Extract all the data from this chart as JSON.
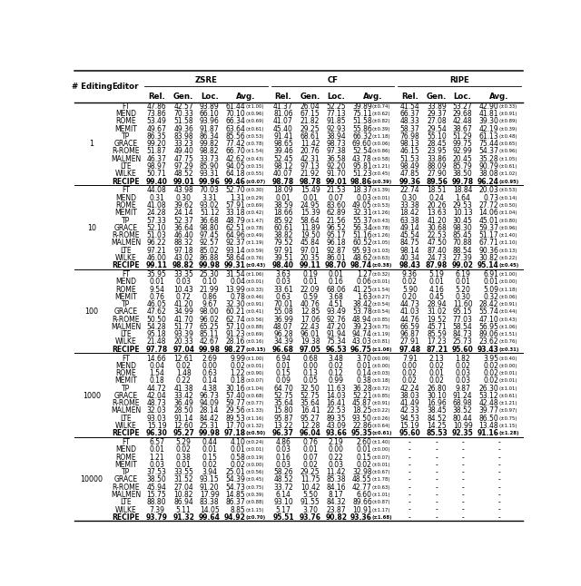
{
  "editors": [
    "FT",
    "MEND",
    "ROME",
    "MEMIT",
    "TP",
    "GRACE",
    "R-ROME",
    "MALMEN",
    "LTE",
    "WILKE",
    "RECIPE"
  ],
  "n_editing_groups": [
    "1",
    "10",
    "100",
    "1000",
    "10000"
  ],
  "data": {
    "1": [
      [
        "47.86",
        "42.57",
        "93.89",
        "61.44",
        "±1.00",
        "41.37",
        "26.04",
        "52.25",
        "39.89",
        "±0.74",
        "41.54",
        "33.89",
        "53.27",
        "42.90",
        "±0.33"
      ],
      [
        "73.86",
        "70.33",
        "66.10",
        "70.10",
        "±0.96",
        "81.06",
        "67.15",
        "77.13",
        "75.11",
        "±0.62",
        "66.37",
        "29.37",
        "29.68",
        "41.81",
        "±0.91"
      ],
      [
        "53.49",
        "51.58",
        "93.96",
        "66.34",
        "±0.69",
        "41.07",
        "21.82",
        "91.85",
        "51.58",
        "±0.82",
        "48.33",
        "27.08",
        "42.48",
        "39.30",
        "±0.89"
      ],
      [
        "49.67",
        "49.36",
        "91.87",
        "63.64",
        "±0.61",
        "45.40",
        "29.25",
        "92.93",
        "55.86",
        "±0.39",
        "58.37",
        "29.54",
        "38.67",
        "42.19",
        "±0.39"
      ],
      [
        "86.35",
        "83.98",
        "86.34",
        "85.56",
        "±0.53",
        "91.41",
        "68.61",
        "38.94",
        "66.32",
        "±1.18",
        "76.98",
        "55.10",
        "51.29",
        "61.13",
        "±0.48"
      ],
      [
        "99.20",
        "33.23",
        "99.82",
        "77.42",
        "±0.78",
        "98.65",
        "11.42",
        "98.73",
        "69.60",
        "±0.06",
        "98.13",
        "28.45",
        "99.75",
        "75.44",
        "±0.65"
      ],
      [
        "51.87",
        "49.40",
        "98.82",
        "66.70",
        "±1.54",
        "39.46",
        "20.76",
        "97.38",
        "52.54",
        "±0.86",
        "46.15",
        "23.95",
        "92.99",
        "54.37",
        "±0.96"
      ],
      [
        "46.37",
        "47.75",
        "33.73",
        "42.62",
        "±0.43",
        "52.45",
        "42.31",
        "36.58",
        "43.78",
        "±0.58",
        "51.53",
        "33.86",
        "20.45",
        "35.28",
        "±1.05"
      ],
      [
        "98.97",
        "97.29",
        "85.90",
        "94.05",
        "±0.15",
        "98.12",
        "97.13",
        "92.20",
        "95.81",
        "±1.21",
        "98.49",
        "88.09",
        "85.79",
        "90.79",
        "±0.61"
      ],
      [
        "50.71",
        "48.52",
        "93.31",
        "64.18",
        "±0.55",
        "40.07",
        "21.92",
        "91.70",
        "51.23",
        "±0.45",
        "47.85",
        "27.90",
        "38.50",
        "38.08",
        "±1.02"
      ],
      [
        "99.40",
        "99.01",
        "99.96",
        "99.46",
        "±0.07",
        "98.78",
        "98.78",
        "99.01",
        "98.86",
        "±0.39",
        "99.36",
        "89.56",
        "99.78",
        "96.24",
        "±0.95"
      ]
    ],
    "10": [
      [
        "44.08",
        "43.98",
        "70.03",
        "52.70",
        "±0.30",
        "18.09",
        "15.49",
        "21.53",
        "18.37",
        "±1.39",
        "22.74",
        "18.51",
        "18.84",
        "20.03",
        "±0.53"
      ],
      [
        "0.31",
        "0.30",
        "3.31",
        "1.31",
        "±0.29",
        "0.01",
        "0.01",
        "0.07",
        "0.03",
        "±0.01",
        "0.30",
        "0.24",
        "1.64",
        "0.73",
        "±0.14"
      ],
      [
        "41.08",
        "39.62",
        "93.02",
        "57.91",
        "±0.69",
        "38.59",
        "24.95",
        "83.60",
        "49.05",
        "±0.53",
        "33.38",
        "20.26",
        "29.53",
        "27.72",
        "±0.50"
      ],
      [
        "24.28",
        "24.14",
        "51.12",
        "33.18",
        "±0.42",
        "18.66",
        "15.39",
        "62.89",
        "32.31",
        "±1.26",
        "18.42",
        "13.63",
        "10.13",
        "14.06",
        "±1.04"
      ],
      [
        "57.33",
        "52.37",
        "36.68",
        "48.79",
        "±1.47",
        "85.92",
        "58.64",
        "21.56",
        "55.37",
        "±0.43",
        "63.38",
        "41.20",
        "30.45",
        "45.01",
        "±0.80"
      ],
      [
        "52.10",
        "36.64",
        "98.80",
        "62.51",
        "±0.78",
        "60.61",
        "11.89",
        "96.52",
        "56.34",
        "±0.78",
        "49.14",
        "30.68",
        "98.30",
        "59.37",
        "±0.96"
      ],
      [
        "51.03",
        "46.40",
        "97.45",
        "64.96",
        "±0.49",
        "38.82",
        "19.50",
        "95.17",
        "51.16",
        "±1.26",
        "45.54",
        "22.53",
        "85.45",
        "51.17",
        "±1.40"
      ],
      [
        "96.22",
        "88.32",
        "92.57",
        "92.37",
        "±1.19",
        "79.52",
        "45.84",
        "96.18",
        "60.52",
        "±1.05",
        "84.75",
        "47.50",
        "70.88",
        "67.71",
        "±1.10"
      ],
      [
        "97.21",
        "97.18",
        "85.02",
        "93.14",
        "±0.59",
        "97.91",
        "97.01",
        "92.87",
        "95.93",
        "±1.03",
        "98.14",
        "87.40",
        "88.54",
        "90.36",
        "±0.13"
      ],
      [
        "46.00",
        "43.02",
        "86.88",
        "58.64",
        "±0.76",
        "39.51",
        "20.35",
        "86.01",
        "48.62",
        "±0.63",
        "40.34",
        "24.73",
        "27.39",
        "30.82",
        "±0.22"
      ],
      [
        "99.11",
        "98.82",
        "99.98",
        "99.31",
        "±0.43",
        "98.40",
        "99.11",
        "98.70",
        "98.74",
        "±0.38",
        "98.43",
        "87.98",
        "99.02",
        "95.14",
        "±0.45"
      ]
    ],
    "100": [
      [
        "35.95",
        "33.35",
        "25.30",
        "31.54",
        "±1.06",
        "3.63",
        "0.19",
        "0.01",
        "1.27",
        "±0.32",
        "9.36",
        "5.19",
        "6.19",
        "6.91",
        "±1.00"
      ],
      [
        "0.01",
        "0.03",
        "0.10",
        "0.04",
        "±0.01",
        "0.03",
        "0.01",
        "0.16",
        "0.06",
        "±0.01",
        "0.02",
        "0.01",
        "0.01",
        "0.01",
        "±0.00"
      ],
      [
        "9.54",
        "10.43",
        "21.99",
        "13.99",
        "±0.33",
        "33.61",
        "22.09",
        "68.06",
        "41.25",
        "±1.54",
        "5.90",
        "4.16",
        "5.20",
        "5.09",
        "±1.18"
      ],
      [
        "0.76",
        "0.72",
        "0.86",
        "0.78",
        "±0.46",
        "0.63",
        "0.59",
        "3.68",
        "1.63",
        "±0.27",
        "0.20",
        "0.45",
        "0.30",
        "0.32",
        "±0.06"
      ],
      [
        "46.05",
        "41.20",
        "9.67",
        "32.30",
        "±0.91",
        "70.01",
        "40.76",
        "4.51",
        "38.42",
        "±0.54",
        "44.73",
        "28.94",
        "11.60",
        "28.42",
        "±0.91"
      ],
      [
        "47.62",
        "34.99",
        "98.00",
        "60.21",
        "±0.41",
        "55.08",
        "12.85",
        "93.49",
        "53.78",
        "±0.54",
        "41.03",
        "31.02",
        "95.15",
        "55.74",
        "±0.44"
      ],
      [
        "50.50",
        "41.70",
        "96.02",
        "62.74",
        "±0.56",
        "36.99",
        "17.06",
        "92.76",
        "48.94",
        "±0.85",
        "44.76",
        "19.52",
        "77.03",
        "47.10",
        "±0.43"
      ],
      [
        "54.28",
        "51.77",
        "65.25",
        "57.10",
        "±0.88",
        "48.07",
        "22.43",
        "47.20",
        "39.23",
        "±0.75",
        "66.59",
        "45.71",
        "58.54",
        "56.95",
        "±1.06"
      ],
      [
        "95.18",
        "93.39",
        "85.11",
        "91.23",
        "±0.69",
        "96.28",
        "96.01",
        "91.94",
        "94.74",
        "±1.19",
        "96.87",
        "85.59",
        "84.73",
        "89.06",
        "±1.51"
      ],
      [
        "21.48",
        "20.33",
        "42.67",
        "28.16",
        "±0.16",
        "34.39",
        "19.38",
        "75.34",
        "43.03",
        "±0.81",
        "27.91",
        "17.23",
        "25.73",
        "23.62",
        "±0.76"
      ],
      [
        "97.78",
        "97.04",
        "99.98",
        "98.27",
        "±0.15",
        "96.68",
        "97.05",
        "96.53",
        "96.75",
        "±1.06",
        "97.48",
        "87.21",
        "95.60",
        "93.43",
        "±0.31"
      ]
    ],
    "1000": [
      [
        "14.66",
        "12.61",
        "2.69",
        "9.99",
        "±1.00",
        "6.94",
        "0.68",
        "3.48",
        "3.70",
        "±0.09",
        "7.91",
        "2.13",
        "1.82",
        "3.95",
        "±0.40"
      ],
      [
        "0.04",
        "0.02",
        "0.00",
        "0.02",
        "±0.01",
        "0.01",
        "0.00",
        "0.02",
        "0.01",
        "±0.00",
        "0.00",
        "0.02",
        "0.02",
        "0.02",
        "±0.00"
      ],
      [
        "1.54",
        "1.48",
        "0.63",
        "1.22",
        "±0.90",
        "0.15",
        "0.13",
        "0.12",
        "0.14",
        "±0.03",
        "0.02",
        "0.01",
        "0.03",
        "0.02",
        "±0.01"
      ],
      [
        "0.18",
        "0.22",
        "0.14",
        "0.18",
        "±0.07",
        "0.09",
        "0.05",
        "0.99",
        "0.38",
        "±0.18",
        "0.02",
        "0.02",
        "0.03",
        "0.02",
        "±0.01"
      ],
      [
        "44.72",
        "41.38",
        "4.38",
        "30.16",
        "±1.04",
        "64.70",
        "32.50",
        "11.63",
        "36.28",
        "±0.72",
        "42.24",
        "26.80",
        "9.87",
        "26.30",
        "±1.01"
      ],
      [
        "42.04",
        "33.42",
        "96.73",
        "57.40",
        "±0.68",
        "52.75",
        "52.75",
        "14.03",
        "52.21",
        "±0.85",
        "38.03",
        "30.10",
        "91.24",
        "53.12",
        "±0.61"
      ],
      [
        "48.73",
        "36.49",
        "94.09",
        "59.77",
        "±0.77",
        "35.64",
        "35.64",
        "16.41",
        "45.87",
        "±0.91",
        "41.49",
        "16.96",
        "68.98",
        "42.48",
        "±1.21"
      ],
      [
        "32.03",
        "28.50",
        "28.14",
        "29.56",
        "±1.33",
        "15.80",
        "16.41",
        "22.53",
        "18.25",
        "±0.22",
        "42.33",
        "38.45",
        "38.52",
        "39.77",
        "±0.97"
      ],
      [
        "93.03",
        "91.14",
        "84.42",
        "89.53",
        "±1.16",
        "95.87",
        "95.27",
        "89.35",
        "93.50",
        "±0.26",
        "94.53",
        "84.52",
        "80.44",
        "86.50",
        "±0.75"
      ],
      [
        "15.19",
        "12.60",
        "25.31",
        "17.70",
        "±1.32",
        "13.22",
        "12.28",
        "43.09",
        "22.86",
        "±0.64",
        "15.19",
        "14.25",
        "10.99",
        "13.48",
        "±1.15"
      ],
      [
        "96.30",
        "95.27",
        "99.98",
        "97.18",
        "±0.50",
        "96.37",
        "96.04",
        "93.66",
        "95.35",
        "±0.61",
        "95.60",
        "85.53",
        "92.35",
        "91.16",
        "±1.28"
      ]
    ],
    "10000": [
      [
        "6.57",
        "5.29",
        "0.44",
        "4.10",
        "±0.24",
        "4.86",
        "0.76",
        "2.19",
        "2.60",
        "±1.40",
        "-",
        "-",
        "-",
        "-",
        ""
      ],
      [
        "0.01",
        "0.02",
        "0.01",
        "0.01",
        "±0.01",
        "0.03",
        "0.01",
        "0.00",
        "0.01",
        "±0.00",
        "-",
        "-",
        "-",
        "-",
        ""
      ],
      [
        "1.21",
        "0.38",
        "0.15",
        "0.58",
        "±0.19",
        "0.16",
        "0.07",
        "0.22",
        "0.15",
        "±0.07",
        "-",
        "-",
        "-",
        "-",
        ""
      ],
      [
        "0.03",
        "0.01",
        "0.02",
        "0.02",
        "±0.00",
        "0.03",
        "0.02",
        "0.03",
        "0.02",
        "±0.01",
        "-",
        "-",
        "-",
        "-",
        ""
      ],
      [
        "37.53",
        "33.55",
        "3.94",
        "25.01",
        "±0.56",
        "58.26",
        "29.25",
        "11.42",
        "32.98",
        "±0.67",
        "-",
        "-",
        "-",
        "-",
        ""
      ],
      [
        "38.50",
        "31.52",
        "93.15",
        "54.39",
        "±0.45",
        "48.52",
        "11.75",
        "85.38",
        "48.55",
        "±1.78",
        "-",
        "-",
        "-",
        "-",
        ""
      ],
      [
        "45.94",
        "27.04",
        "91.20",
        "54.73",
        "±0.75",
        "33.72",
        "10.42",
        "84.16",
        "42.77",
        "±0.63",
        "-",
        "-",
        "-",
        "-",
        ""
      ],
      [
        "15.75",
        "10.82",
        "17.99",
        "14.85",
        "±0.39",
        "6.14",
        "5.50",
        "8.17",
        "6.60",
        "±1.01",
        "-",
        "-",
        "-",
        "-",
        ""
      ],
      [
        "88.80",
        "86.94",
        "83.38",
        "86.37",
        "±0.88",
        "93.10",
        "91.55",
        "84.32",
        "89.66",
        "±0.87",
        "-",
        "-",
        "-",
        "-",
        ""
      ],
      [
        "7.39",
        "5.11",
        "14.05",
        "8.85",
        "±1.15",
        "5.17",
        "3.70",
        "23.87",
        "10.91",
        "±1.17",
        "-",
        "-",
        "-",
        "-",
        ""
      ],
      [
        "93.79",
        "91.32",
        "99.64",
        "94.92",
        "±0.70",
        "95.51",
        "93.76",
        "90.82",
        "93.36",
        "±1.68",
        "-",
        "-",
        "-",
        "-",
        ""
      ]
    ]
  },
  "bold_row_idx": 10,
  "background_color": "#ffffff",
  "font_size": 5.5,
  "header_font_size": 6.2,
  "small_font_size": 3.8
}
